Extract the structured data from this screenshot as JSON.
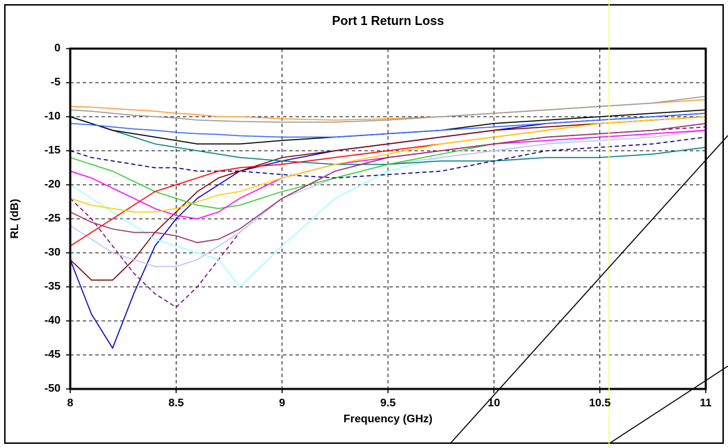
{
  "chart_data": {
    "type": "line",
    "title": "Port 1 Return Loss",
    "x_label": "Frequency (GHz)",
    "y_label": "RL (dB)",
    "x": [
      8,
      8.1,
      8.2,
      8.3,
      8.4,
      8.5,
      8.6,
      8.7,
      8.8,
      9,
      9.25,
      9.5,
      9.75,
      10,
      10.25,
      10.5,
      10.75,
      11
    ],
    "xlim": [
      8,
      11
    ],
    "xticks": [
      8,
      8.5,
      9,
      9.5,
      10,
      10.5,
      11
    ],
    "ylim": [
      -50,
      0
    ],
    "yticks": [
      0,
      -5,
      -10,
      -15,
      -20,
      -25,
      -30,
      -35,
      -40,
      -45,
      -50
    ],
    "grid": true,
    "series": [
      {
        "color": "#0000cc",
        "dashed": false,
        "values": [
          -31,
          -39,
          -44,
          -36,
          -29,
          -25,
          -22,
          -20,
          -18,
          -16.5,
          -15,
          -14,
          -13,
          -12,
          -11,
          -10.5,
          -10,
          -9.5
        ]
      },
      {
        "color": "#800000",
        "dashed": false,
        "values": [
          -31,
          -34,
          -34,
          -31,
          -27,
          -24,
          -21,
          -19,
          -18,
          -16,
          -15,
          -14,
          -13,
          -12,
          -11.5,
          -11,
          -10.5,
          -10
        ]
      },
      {
        "color": "#800080",
        "dashed": true,
        "values": [
          -22,
          -25,
          -29,
          -33,
          -36,
          -38,
          -35,
          -31,
          -27,
          -22,
          -18,
          -16,
          -15,
          -14,
          -13,
          -12.5,
          -12,
          -11.5
        ]
      },
      {
        "color": "#99ffff",
        "dashed": false,
        "values": [
          -20,
          -22,
          -24,
          -26,
          -28,
          -29,
          -30,
          -31,
          -35,
          -29,
          -22,
          -18,
          -16,
          -15,
          -14,
          -13,
          -12.5,
          -12
        ]
      },
      {
        "color": "#c0c0ff",
        "dashed": false,
        "values": [
          -26,
          -28,
          -30,
          -31,
          -32,
          -32,
          -31,
          -29,
          -27,
          -22,
          -19,
          -17,
          -16,
          -15,
          -14,
          -13.5,
          -13,
          -12
        ]
      },
      {
        "color": "#008080",
        "dashed": false,
        "values": [
          -10,
          -11,
          -12,
          -13,
          -14,
          -14.5,
          -15,
          -15.5,
          -16,
          -16.5,
          -17,
          -17,
          -16.5,
          -16.5,
          -16,
          -16,
          -15.5,
          -14.5
        ]
      },
      {
        "color": "#ff9933",
        "dashed": false,
        "values": [
          -8.5,
          -8.6,
          -8.8,
          -9,
          -9.2,
          -9.5,
          -9.7,
          -10,
          -10,
          -10.3,
          -10.5,
          -10.3,
          -10,
          -9.5,
          -9,
          -8.5,
          -8,
          -7.5
        ]
      },
      {
        "color": "#999999",
        "dashed": false,
        "values": [
          -9,
          -9.2,
          -9.5,
          -9.8,
          -10,
          -10.2,
          -10.5,
          -10.6,
          -10.7,
          -10.8,
          -10.8,
          -10.5,
          -10,
          -9.5,
          -9,
          -8.5,
          -8,
          -7
        ]
      },
      {
        "color": "#33cc33",
        "dashed": false,
        "values": [
          -16,
          -17,
          -18,
          -19.5,
          -21,
          -22,
          -23,
          -23.5,
          -23,
          -21,
          -19,
          -17,
          -15.5,
          -14,
          -13,
          -12.5,
          -12,
          -11
        ]
      },
      {
        "color": "#000000",
        "dashed": false,
        "values": [
          -10,
          -11,
          -12,
          -12.5,
          -13,
          -13.5,
          -14,
          -14,
          -14,
          -13.5,
          -13,
          -12.5,
          -12,
          -11,
          -10.5,
          -10,
          -9.5,
          -9
        ]
      },
      {
        "color": "#000080",
        "dashed": true,
        "values": [
          -15,
          -16,
          -16.5,
          -17,
          -17.5,
          -17.5,
          -18,
          -18,
          -18,
          -18.5,
          -19,
          -18.5,
          -18,
          -16.5,
          -15,
          -14.5,
          -14,
          -13
        ]
      },
      {
        "color": "#ff0000",
        "dashed": false,
        "values": [
          -29,
          -27,
          -25,
          -23,
          -21,
          -20,
          -19,
          -18,
          -17.5,
          -17,
          -16,
          -15,
          -14,
          -13,
          -12,
          -11,
          -10.5,
          -10
        ]
      },
      {
        "color": "#ff00ff",
        "dashed": false,
        "values": [
          -18,
          -19,
          -20.5,
          -22,
          -23.5,
          -24.5,
          -25,
          -24,
          -22,
          -19,
          -17,
          -16,
          -15,
          -14,
          -13.5,
          -13,
          -12.5,
          -12
        ]
      },
      {
        "color": "#993366",
        "dashed": false,
        "values": [
          -24,
          -25.5,
          -26.5,
          -27,
          -27,
          -27.5,
          -28.5,
          -28,
          -26.5,
          -22,
          -18,
          -16,
          -15,
          -14,
          -13,
          -12.5,
          -12,
          -11
        ]
      },
      {
        "color": "#ffcc00",
        "dashed": false,
        "values": [
          -22,
          -23,
          -23.5,
          -24,
          -24,
          -23.5,
          -22.5,
          -21.5,
          -21,
          -19,
          -17,
          -15.5,
          -14,
          -13,
          -12,
          -11,
          -10.5,
          -10
        ]
      },
      {
        "color": "#3366ff",
        "dashed": false,
        "values": [
          -11,
          -11.2,
          -11.5,
          -11.8,
          -12,
          -12.3,
          -12.5,
          -12.6,
          -12.8,
          -13,
          -13,
          -12.5,
          -12,
          -11.5,
          -11,
          -10.5,
          -10,
          -9.5
        ]
      }
    ]
  }
}
